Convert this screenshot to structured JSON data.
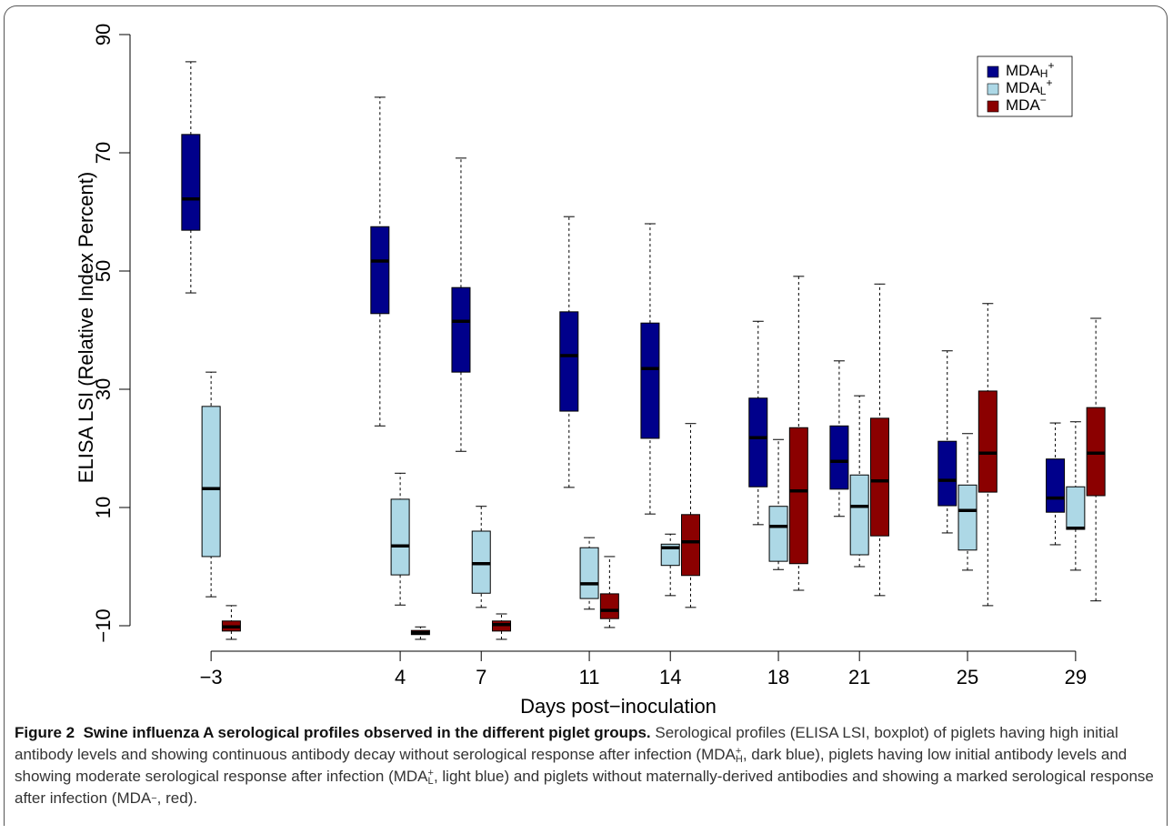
{
  "chart_data": {
    "type": "boxplot",
    "x_label": "Days post−inoculation",
    "y_label": "ELISA LSI (Relative Index Percent)",
    "x": [
      -3,
      4,
      7,
      11,
      14,
      18,
      21,
      25,
      29
    ],
    "xlim": [
      -6,
      32
    ],
    "xticks": [
      {
        "value": -3,
        "label": "−3"
      },
      4,
      7,
      11,
      14,
      18,
      21,
      25,
      29
    ],
    "ylim": [
      -14,
      94
    ],
    "yticks": [
      {
        "value": -10,
        "label": "−10"
      },
      10,
      30,
      50,
      70,
      90
    ],
    "legend_position": "upper right",
    "series": [
      {
        "name": "MDA",
        "subscript": "H",
        "superscript": "+",
        "color": "#00008b",
        "min": [
          46.3,
          23.8,
          19.5,
          13.4,
          8.9,
          7.1,
          8.5,
          5.7,
          3.7
        ],
        "q1": [
          56.9,
          42.8,
          32.9,
          26.3,
          21.7,
          13.5,
          13.1,
          10.3,
          9.2
        ],
        "median": [
          62.2,
          51.7,
          41.5,
          35.7,
          33.5,
          21.8,
          17.8,
          14.6,
          11.6
        ],
        "q3": [
          73.1,
          57.5,
          47.2,
          43.1,
          41.2,
          28.5,
          23.8,
          21.2,
          18.2
        ],
        "max": [
          85.4,
          79.4,
          69.1,
          59.2,
          58.0,
          41.5,
          34.8,
          36.5,
          24.3
        ]
      },
      {
        "name": "MDA",
        "subscript": "L",
        "superscript": "+",
        "color": "#add8e6",
        "min": [
          -5.1,
          -6.5,
          -6.9,
          -7.2,
          -4.9,
          -0.5,
          -0.0,
          -0.6,
          -0.6
        ],
        "q1": [
          1.7,
          -1.4,
          -4.5,
          -5.4,
          0.2,
          0.9,
          2.0,
          2.8,
          6.3
        ],
        "median": [
          13.2,
          3.5,
          0.5,
          -2.9,
          3.2,
          6.8,
          10.2,
          9.5,
          6.5
        ],
        "q3": [
          27.1,
          11.4,
          6.0,
          3.2,
          3.8,
          10.2,
          15.5,
          13.8,
          13.5
        ],
        "max": [
          32.9,
          15.8,
          10.2,
          4.9,
          5.5,
          21.5,
          28.9,
          22.5,
          24.5
        ]
      },
      {
        "name": "MDA",
        "superscript": "−",
        "color": "#8b0000",
        "min": [
          -12.3,
          -12.3,
          -12.3,
          -10.3,
          -6.9,
          -4.0,
          -4.9,
          -6.6,
          -5.8
        ],
        "q1": [
          -10.9,
          -11.5,
          -10.9,
          -8.8,
          -1.5,
          0.5,
          5.2,
          12.6,
          12.0
        ],
        "median": [
          -10.2,
          -11.2,
          -9.8,
          -7.4,
          4.2,
          12.8,
          14.5,
          19.2,
          19.2
        ],
        "q3": [
          -9.2,
          -10.8,
          -9.2,
          -4.6,
          8.8,
          23.5,
          25.1,
          29.7,
          26.9
        ],
        "max": [
          -6.6,
          -10.2,
          -8.0,
          1.7,
          24.2,
          49.1,
          47.8,
          44.5,
          42.0
        ]
      }
    ]
  },
  "caption": {
    "label": "Figure 2",
    "title": "Swine influenza A serological profiles observed in the different piglet groups.",
    "body": [
      {
        "text": "Serological profiles (ELISA LSI, boxplot) of piglets having high initial antibody levels and showing continuous antibody decay without serological response after infection (MDA"
      },
      {
        "sup": "+",
        "sub": "H"
      },
      {
        "text": ", dark blue), piglets having low initial antibody levels and showing moderate serological response after infection (MDA"
      },
      {
        "sup": "+",
        "sub": "L"
      },
      {
        "text": ", light blue) and piglets without maternally-derived antibodies and showing a marked serological response after infection (MDA"
      },
      {
        "sup": "−"
      },
      {
        "text": ", red)."
      }
    ]
  }
}
